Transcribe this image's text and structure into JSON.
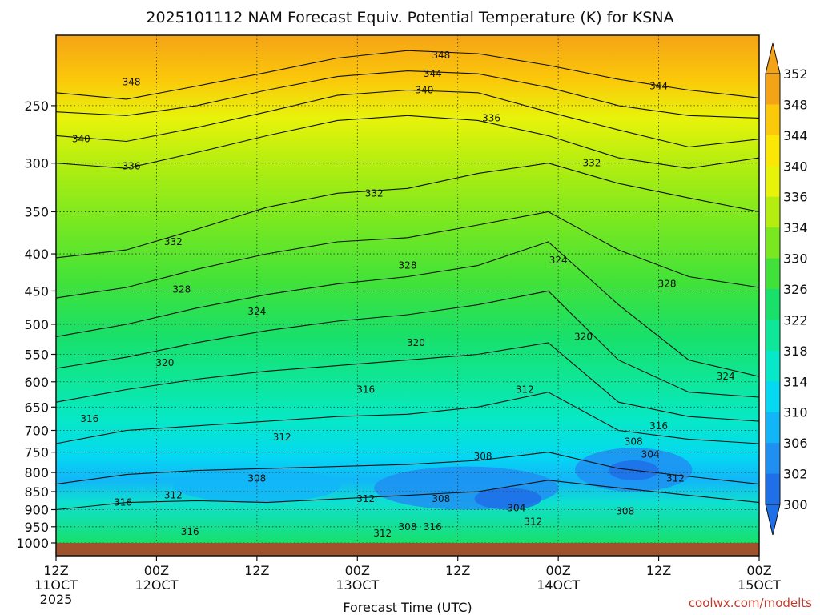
{
  "header": {
    "title": "2025101112 NAM Forecast Equiv. Potential Temperature (K) for KSNA"
  },
  "footer": {
    "credit": "coolwx.com/modelts"
  },
  "chart_data": {
    "type": "heatmap",
    "title": "2025101112 NAM Forecast Equiv. Potential Temperature (K) for KSNA",
    "xlabel": "Forecast Time (UTC)",
    "ylabel": "",
    "x_ticks": [
      {
        "hour": 0,
        "line1": "12Z",
        "line2": "11OCT",
        "line3": "2025"
      },
      {
        "hour": 12,
        "line1": "00Z",
        "line2": "12OCT",
        "line3": ""
      },
      {
        "hour": 24,
        "line1": "12Z",
        "line2": "",
        "line3": ""
      },
      {
        "hour": 36,
        "line1": "00Z",
        "line2": "13OCT",
        "line3": ""
      },
      {
        "hour": 48,
        "line1": "12Z",
        "line2": "",
        "line3": ""
      },
      {
        "hour": 60,
        "line1": "00Z",
        "line2": "14OCT",
        "line3": ""
      },
      {
        "hour": 72,
        "line1": "12Z",
        "line2": "",
        "line3": ""
      },
      {
        "hour": 84,
        "line1": "00Z",
        "line2": "15OCT",
        "line3": ""
      }
    ],
    "xlim": [
      0,
      84
    ],
    "y_ticks": [
      250,
      300,
      350,
      400,
      450,
      500,
      550,
      600,
      650,
      700,
      750,
      800,
      850,
      900,
      950,
      1000
    ],
    "ylim": [
      200,
      1000
    ],
    "y_scale": "log-pressure",
    "colorbar": {
      "levels": [
        300,
        302,
        306,
        310,
        314,
        318,
        322,
        326,
        330,
        334,
        336,
        340,
        344,
        348,
        352
      ],
      "colors": [
        "#1e6fe8",
        "#1f8ff2",
        "#12b6f8",
        "#05d8f2",
        "#06e8c8",
        "#0ee79a",
        "#18e06a",
        "#40e23a",
        "#7ae820",
        "#b4ee10",
        "#e8f30a",
        "#fbe705",
        "#fbc80a",
        "#f5a316"
      ]
    },
    "contours": [
      {
        "value": 348,
        "p": [
          240,
          245,
          235,
          225,
          215,
          210,
          212,
          220,
          230,
          238,
          244
        ]
      },
      {
        "value": 344,
        "p": [
          255,
          258,
          250,
          238,
          228,
          224,
          226,
          236,
          250,
          258,
          260
        ]
      },
      {
        "value": 340,
        "p": [
          275,
          280,
          268,
          255,
          242,
          238,
          240,
          255,
          270,
          285,
          278
        ]
      },
      {
        "value": 336,
        "p": [
          300,
          305,
          290,
          275,
          262,
          258,
          262,
          275,
          295,
          305,
          295
        ]
      },
      {
        "value": 332,
        "p": [
          405,
          395,
          370,
          345,
          330,
          325,
          310,
          300,
          320,
          335,
          350
        ]
      },
      {
        "value": 328,
        "p": [
          460,
          445,
          420,
          400,
          385,
          380,
          365,
          350,
          395,
          430,
          445
        ]
      },
      {
        "value": 324,
        "p": [
          520,
          500,
          475,
          455,
          440,
          430,
          415,
          385,
          470,
          560,
          590
        ]
      },
      {
        "value": 320,
        "p": [
          575,
          555,
          530,
          510,
          495,
          485,
          470,
          450,
          560,
          620,
          630
        ]
      },
      {
        "value": 316,
        "p": [
          640,
          615,
          595,
          580,
          570,
          560,
          550,
          530,
          640,
          670,
          680
        ]
      },
      {
        "value": 312,
        "p": [
          730,
          700,
          690,
          680,
          670,
          665,
          650,
          620,
          700,
          720,
          730
        ]
      },
      {
        "value": 308,
        "p": [
          830,
          805,
          795,
          790,
          785,
          780,
          770,
          750,
          790,
          810,
          830
        ]
      },
      {
        "value": 304,
        "p": [
          900,
          880,
          875,
          880,
          870,
          860,
          850,
          820,
          840,
          860,
          880
        ]
      }
    ],
    "contour_labels": [
      {
        "text": "348",
        "hour": 46,
        "p": 213
      },
      {
        "text": "348",
        "hour": 9,
        "p": 232
      },
      {
        "text": "344",
        "hour": 45,
        "p": 226
      },
      {
        "text": "344",
        "hour": 72,
        "p": 235
      },
      {
        "text": "340",
        "hour": 44,
        "p": 238
      },
      {
        "text": "340",
        "hour": 3,
        "p": 278
      },
      {
        "text": "336",
        "hour": 52,
        "p": 260
      },
      {
        "text": "336",
        "hour": 9,
        "p": 303
      },
      {
        "text": "332",
        "hour": 64,
        "p": 300
      },
      {
        "text": "332",
        "hour": 38,
        "p": 330
      },
      {
        "text": "332",
        "hour": 14,
        "p": 385
      },
      {
        "text": "328",
        "hour": 42,
        "p": 415
      },
      {
        "text": "328",
        "hour": 15,
        "p": 448
      },
      {
        "text": "328",
        "hour": 73,
        "p": 440
      },
      {
        "text": "324",
        "hour": 60,
        "p": 408
      },
      {
        "text": "324",
        "hour": 24,
        "p": 480
      },
      {
        "text": "324",
        "hour": 80,
        "p": 590
      },
      {
        "text": "320",
        "hour": 43,
        "p": 530
      },
      {
        "text": "320",
        "hour": 13,
        "p": 565
      },
      {
        "text": "320",
        "hour": 63,
        "p": 520
      },
      {
        "text": "316",
        "hour": 37,
        "p": 615
      },
      {
        "text": "316",
        "hour": 4,
        "p": 675
      },
      {
        "text": "316",
        "hour": 72,
        "p": 690
      },
      {
        "text": "316",
        "hour": 8,
        "p": 880
      },
      {
        "text": "316",
        "hour": 16,
        "p": 965
      },
      {
        "text": "316",
        "hour": 45,
        "p": 950
      },
      {
        "text": "312",
        "hour": 56,
        "p": 615
      },
      {
        "text": "312",
        "hour": 27,
        "p": 715
      },
      {
        "text": "312",
        "hour": 14,
        "p": 860
      },
      {
        "text": "312",
        "hour": 37,
        "p": 870
      },
      {
        "text": "312",
        "hour": 57,
        "p": 935
      },
      {
        "text": "312",
        "hour": 39,
        "p": 970
      },
      {
        "text": "312",
        "hour": 74,
        "p": 815
      },
      {
        "text": "308",
        "hour": 51,
        "p": 760
      },
      {
        "text": "308",
        "hour": 24,
        "p": 815
      },
      {
        "text": "308",
        "hour": 46,
        "p": 870
      },
      {
        "text": "308",
        "hour": 68,
        "p": 905
      },
      {
        "text": "308",
        "hour": 69,
        "p": 725
      },
      {
        "text": "308",
        "hour": 42,
        "p": 950
      },
      {
        "text": "304",
        "hour": 55,
        "p": 895
      },
      {
        "text": "304",
        "hour": 71,
        "p": 755
      }
    ]
  }
}
